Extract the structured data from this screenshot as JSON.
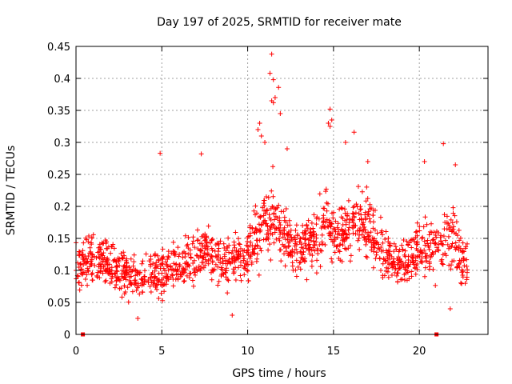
{
  "chart_data": {
    "type": "scatter",
    "title": "Day 197 of 2025, SRMTID for receiver mate",
    "xlabel": "GPS time / hours",
    "ylabel": "SRMTID / TECUs",
    "xlim": [
      0,
      24
    ],
    "ylim": [
      0,
      0.45
    ],
    "xticks": [
      0,
      5,
      10,
      15,
      20
    ],
    "xtick_labels": [
      "0",
      "5",
      "10",
      "15",
      "20"
    ],
    "yticks": [
      0,
      0.05,
      0.1,
      0.15,
      0.2,
      0.25,
      0.3,
      0.35,
      0.4,
      0.45
    ],
    "ytick_labels": [
      "0",
      "0.05",
      "0.1",
      "0.15",
      "0.2",
      "0.25",
      "0.3",
      "0.35",
      "0.4",
      "0.45"
    ],
    "grid": true,
    "marker": "plus",
    "color": "#ff0000",
    "baseline_markers_x": [
      0.4,
      21.0
    ],
    "series": [
      {
        "name": "SRMTID",
        "envelope": {
          "x": [
            0,
            1,
            2,
            3,
            4,
            5,
            6,
            7,
            7.5,
            8,
            9,
            9.5,
            10,
            10.5,
            11,
            11.5,
            12,
            13,
            14,
            14.5,
            15,
            16,
            17,
            17.5,
            18,
            19,
            19.5,
            20,
            21,
            22,
            22.8
          ],
          "center": [
            0.11,
            0.12,
            0.11,
            0.09,
            0.09,
            0.1,
            0.11,
            0.12,
            0.13,
            0.12,
            0.11,
            0.12,
            0.13,
            0.16,
            0.19,
            0.18,
            0.16,
            0.13,
            0.15,
            0.17,
            0.16,
            0.17,
            0.17,
            0.15,
            0.12,
            0.11,
            0.12,
            0.14,
            0.13,
            0.15,
            0.1
          ],
          "spread": [
            0.05,
            0.05,
            0.05,
            0.04,
            0.04,
            0.05,
            0.05,
            0.06,
            0.06,
            0.05,
            0.05,
            0.05,
            0.06,
            0.07,
            0.08,
            0.08,
            0.06,
            0.05,
            0.06,
            0.07,
            0.06,
            0.06,
            0.06,
            0.06,
            0.05,
            0.05,
            0.05,
            0.06,
            0.06,
            0.07,
            0.05
          ]
        },
        "n_points": 1500,
        "outliers": [
          [
            11.4,
            0.438
          ],
          [
            11.3,
            0.408
          ],
          [
            11.5,
            0.398
          ],
          [
            11.8,
            0.386
          ],
          [
            11.4,
            0.365
          ],
          [
            11.5,
            0.362
          ],
          [
            11.6,
            0.37
          ],
          [
            11.9,
            0.345
          ],
          [
            14.8,
            0.352
          ],
          [
            14.7,
            0.33
          ],
          [
            14.8,
            0.325
          ],
          [
            14.9,
            0.335
          ],
          [
            16.2,
            0.316
          ],
          [
            21.4,
            0.298
          ],
          [
            4.9,
            0.283
          ],
          [
            7.3,
            0.282
          ],
          [
            10.7,
            0.33
          ],
          [
            10.8,
            0.31
          ],
          [
            11.0,
            0.3
          ],
          [
            20.3,
            0.27
          ],
          [
            22.1,
            0.265
          ],
          [
            17.0,
            0.27
          ],
          [
            21.8,
            0.04
          ],
          [
            9.1,
            0.03
          ],
          [
            3.6,
            0.025
          ],
          [
            15.7,
            0.3
          ],
          [
            12.3,
            0.29
          ],
          [
            10.6,
            0.32
          ]
        ]
      }
    ]
  }
}
